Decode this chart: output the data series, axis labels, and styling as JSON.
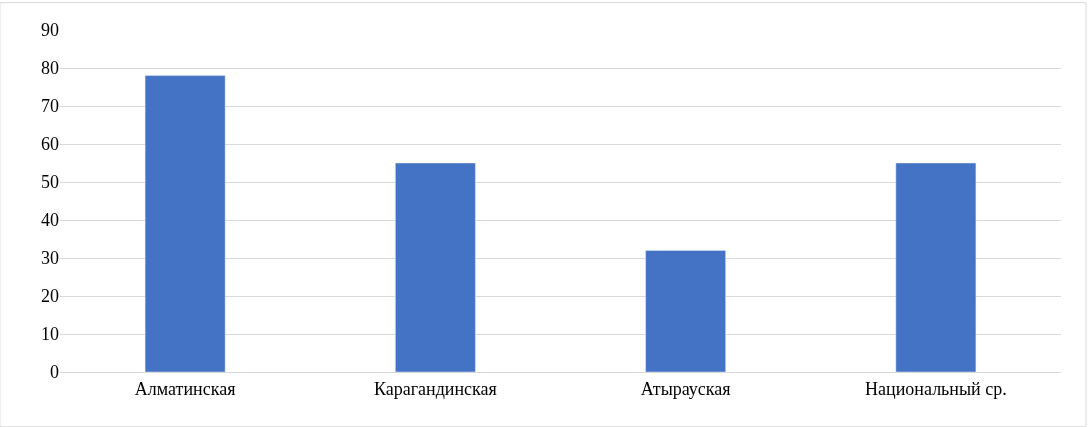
{
  "chart_data": {
    "type": "bar",
    "categories": [
      "Алматинская",
      "Карагандинская",
      "Атырауская",
      "Национальный ср."
    ],
    "values": [
      78,
      55,
      32,
      55
    ],
    "color": "#4472c4",
    "ylim": [
      0,
      90
    ],
    "yticks": [
      0,
      10,
      20,
      30,
      40,
      50,
      60,
      70,
      80,
      90
    ],
    "grid": "y",
    "legend": false
  }
}
